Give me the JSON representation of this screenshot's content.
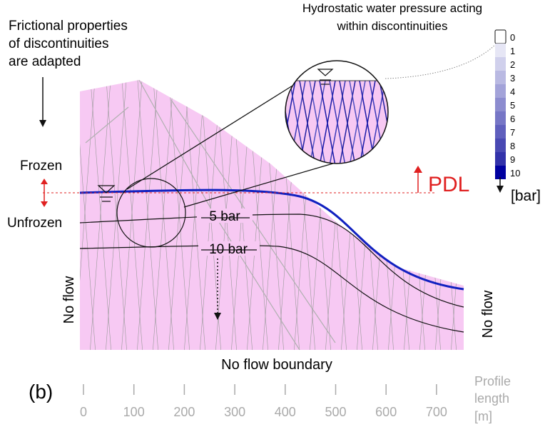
{
  "labels": {
    "frictional_line1": "Frictional properties",
    "frictional_line2": "of discontinuities",
    "frictional_line3": "are adapted",
    "hydro_line1": "Hydrostatic water pressure acting",
    "hydro_line2": "within discontinuities",
    "frozen": "Frozen",
    "unfrozen": "Unfrozen",
    "pdl": "PDL",
    "bar_unit": "[bar]",
    "contour_5": "5 bar",
    "contour_10": "10 bar",
    "no_flow_left": "No flow",
    "no_flow_right": "No flow",
    "no_flow_boundary": "No flow boundary",
    "panel": "(b)",
    "axis_title_line1": "Profile",
    "axis_title_line2": "length",
    "axis_title_line3": "[m]"
  },
  "legend_values": [
    "0",
    "1",
    "2",
    "3",
    "4",
    "5",
    "6",
    "7",
    "8",
    "9",
    "10"
  ],
  "legend_colors": [
    "#ffffff",
    "#e6e6f5",
    "#d0d0ec",
    "#b9b9e2",
    "#a3a3d9",
    "#8c8ccf",
    "#7676c6",
    "#5f5fbd",
    "#4949b3",
    "#3232aa",
    "#0000a0"
  ],
  "axis_ticks": [
    "0",
    "100",
    "200",
    "300",
    "400",
    "500",
    "600",
    "700"
  ],
  "colors": {
    "rock_fill": "#f7c9f3",
    "water_table": "#1020c0",
    "pdl_red": "#e02020",
    "joint_lines": "#999999"
  }
}
